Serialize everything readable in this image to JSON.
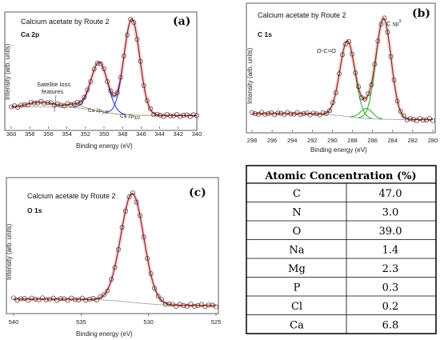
{
  "colors": {
    "fit": "#8b2b14",
    "raw": "#3a1a10",
    "pink": "#f4c7d4",
    "background": "#a8a8a8",
    "green": "#22aa22",
    "blue": "#1f2fd0",
    "olive": "#b6a052",
    "magenta": "#c23ab2"
  },
  "chart_data": [
    {
      "type": "line",
      "panel": "(a)",
      "title": "Calcium acetate by Route 2",
      "subtitle": "Ca 2p",
      "xlabel": "Binding energy (eV)",
      "ylabel": "Intensity (arb. units)",
      "xlim": [
        360,
        340
      ],
      "x_reversed": true,
      "xticks": [
        "360",
        "358",
        "356",
        "354",
        "352",
        "350",
        "348",
        "346",
        "344",
        "342",
        "340"
      ],
      "annotations": [
        "Satellite loss features",
        "Ca 2p1/2",
        "Ca 2p3/2"
      ],
      "series": [
        {
          "name": "Ca 2p1/2",
          "component": true,
          "center_eV": 350.5,
          "width_eV": 0.9,
          "height": 0.51
        },
        {
          "name": "Ca 2p3/2",
          "component": true,
          "center_eV": 347.0,
          "width_eV": 0.85,
          "height": 1.0
        }
      ],
      "satellite_centers_eV": [
        353.2,
        356.0,
        357.6
      ],
      "baseline": {
        "high_eV": 0.12,
        "low_eV": 0.03
      }
    },
    {
      "type": "line",
      "panel": "(b)",
      "title": "Calcium acetate by Route 2",
      "subtitle": "C 1s",
      "xlabel": "Binding energy (eV)",
      "ylabel": "Intensity (arb. units)",
      "xlim": [
        298,
        280
      ],
      "x_reversed": true,
      "xticks": [
        "298",
        "296",
        "294",
        "292",
        "290",
        "288",
        "286",
        "284",
        "282",
        "280"
      ],
      "annotations": [
        "O-C=O",
        "C sp3"
      ],
      "series": [
        {
          "name": "O-C=O",
          "component": true,
          "center_eV": 288.5,
          "width_eV": 0.75,
          "height": 0.75
        },
        {
          "name": "C-O",
          "component": true,
          "center_eV": 286.6,
          "width_eV": 0.6,
          "height": 0.1
        },
        {
          "name": "C sp3",
          "component": true,
          "center_eV": 284.9,
          "width_eV": 0.75,
          "height": 1.0
        }
      ],
      "baseline": {
        "high_eV": 0.08,
        "low_eV": 0.02
      }
    },
    {
      "type": "line",
      "panel": "(c)",
      "title": "Calcium acetate by Route 2",
      "subtitle": "O 1s",
      "xlabel": "Binding energy (eV)",
      "ylabel": "Intensity (arb. units)",
      "xlim": [
        540,
        525
      ],
      "x_reversed": true,
      "xticks": [
        "540",
        "535",
        "530",
        "525"
      ],
      "series": [
        {
          "name": "O 1s",
          "component": true,
          "center_eV": 531.2,
          "width_eV": 0.85,
          "height": 1.0
        }
      ],
      "baseline": {
        "high_eV": 0.06,
        "low_eV": 0.0
      }
    },
    {
      "type": "table",
      "title": "Atomic Concentration (%)",
      "rows": [
        {
          "element": "C",
          "value": "47.0"
        },
        {
          "element": "N",
          "value": "3.0"
        },
        {
          "element": "O",
          "value": "39.0"
        },
        {
          "element": "Na",
          "value": "1.4"
        },
        {
          "element": "Mg",
          "value": "2.3"
        },
        {
          "element": "P",
          "value": "0.3"
        },
        {
          "element": "Cl",
          "value": "0.2"
        },
        {
          "element": "Ca",
          "value": "6.8"
        }
      ]
    }
  ]
}
